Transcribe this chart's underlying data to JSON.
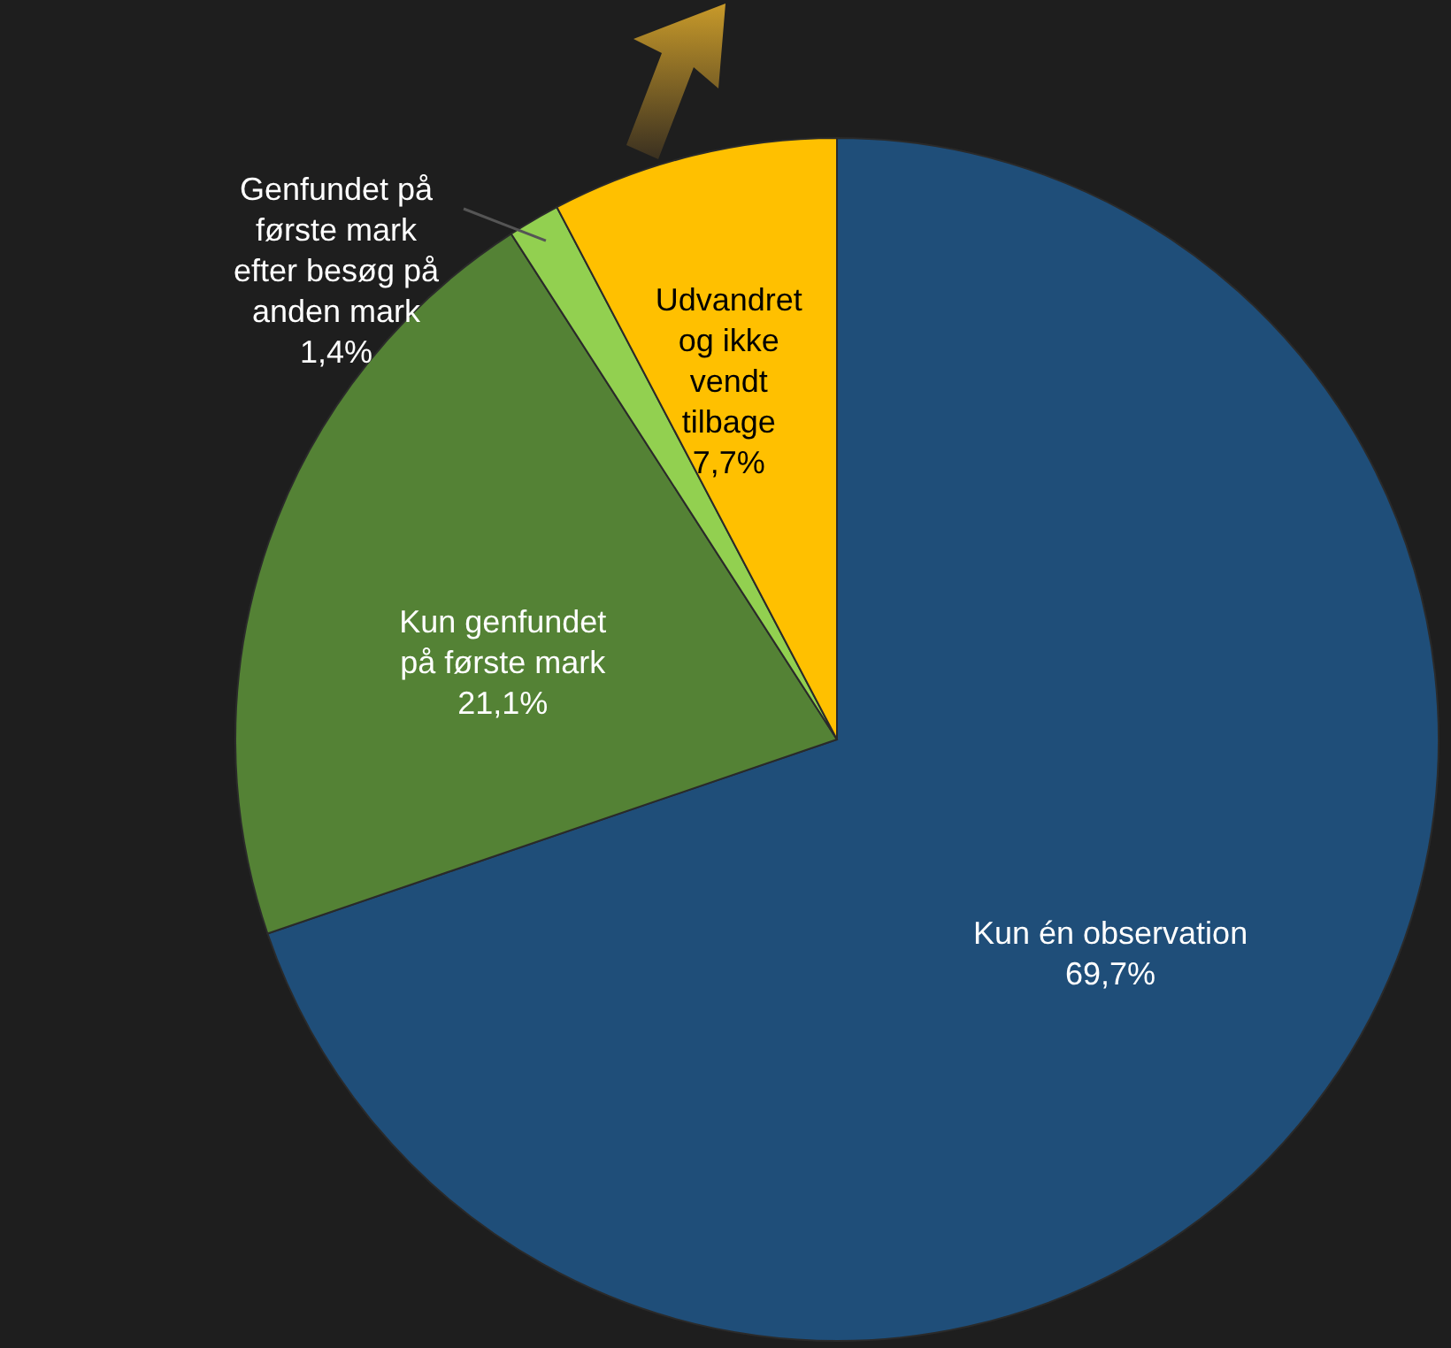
{
  "chart_data": {
    "type": "pie",
    "categories": [
      "Kun én observation",
      "Kun genfundet på første mark",
      "Genfundet på første mark efter besøg på anden mark",
      "Udvandret og ikke vendt tilbage"
    ],
    "values": [
      69.7,
      21.1,
      1.4,
      7.7
    ],
    "colors": [
      "#1f4e79",
      "#548235",
      "#92d050",
      "#ffc000"
    ],
    "value_labels": [
      "69,7%",
      "21,1%",
      "1,4%",
      "7,7%"
    ]
  }
}
